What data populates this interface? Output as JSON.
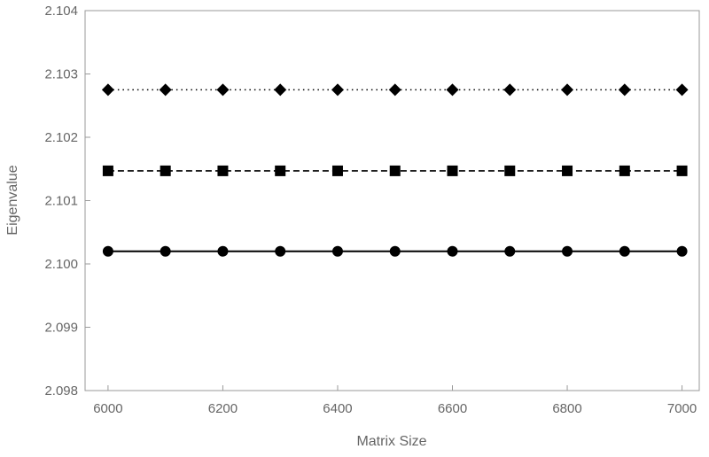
{
  "chart_data": {
    "type": "line",
    "title": "",
    "xlabel": "Matrix Size",
    "ylabel": "Eigenvalue",
    "xlim": [
      5960,
      7030
    ],
    "ylim": [
      2.098,
      2.104
    ],
    "xticks": [
      6000,
      6200,
      6400,
      6600,
      6800,
      7000
    ],
    "xtick_labels": [
      "6000",
      "6200",
      "6400",
      "6600",
      "6800",
      "7000"
    ],
    "yticks": [
      2.098,
      2.099,
      2.1,
      2.101,
      2.102,
      2.103,
      2.104
    ],
    "ytick_labels": [
      "2.098",
      "2.099",
      "2.100",
      "2.101",
      "2.102",
      "2.103",
      "2.104"
    ],
    "grid": false,
    "frame": true,
    "x": [
      6000,
      6100,
      6200,
      6300,
      6400,
      6500,
      6600,
      6700,
      6800,
      6900,
      7000
    ],
    "series": [
      {
        "marker": "diamond",
        "line_style": "dotted",
        "color": "#000000",
        "values": [
          2.10275,
          2.10275,
          2.10275,
          2.10275,
          2.10275,
          2.10275,
          2.10275,
          2.10275,
          2.10275,
          2.10275,
          2.10275
        ]
      },
      {
        "marker": "square",
        "line_style": "dashed",
        "color": "#000000",
        "values": [
          2.10147,
          2.10147,
          2.10147,
          2.10147,
          2.10147,
          2.10147,
          2.10147,
          2.10147,
          2.10147,
          2.10147,
          2.10147
        ]
      },
      {
        "marker": "circle",
        "line_style": "solid",
        "color": "#000000",
        "values": [
          2.1002,
          2.1002,
          2.1002,
          2.1002,
          2.1002,
          2.1002,
          2.1002,
          2.1002,
          2.1002,
          2.1002,
          2.1002
        ]
      }
    ],
    "colors": {
      "frame": "#9a9a9a",
      "text": "#666666",
      "marks": "#000000"
    }
  }
}
